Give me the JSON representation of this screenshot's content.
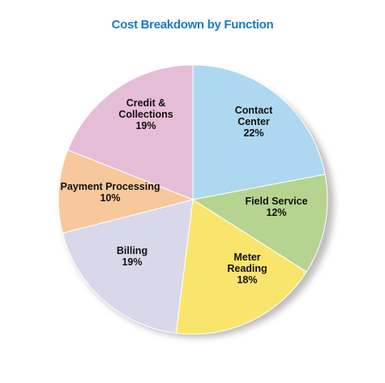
{
  "chart_data": {
    "type": "pie",
    "title": "Cost Breakdown by Function",
    "categories": [
      "Contact Center",
      "Field Service",
      "Meter Reading",
      "Billing",
      "Payment Processing",
      "Credit & Collections"
    ],
    "values": [
      22,
      12,
      18,
      19,
      10,
      19
    ],
    "value_labels": [
      "22%",
      "12%",
      "18%",
      "19%",
      "10%",
      "19%"
    ],
    "colors": [
      "#aed8ef",
      "#b6d38f",
      "#f9e56b",
      "#d9d8ea",
      "#f6c89b",
      "#e6bdd6"
    ]
  }
}
